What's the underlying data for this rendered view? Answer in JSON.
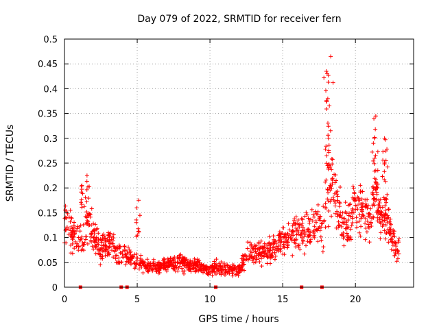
{
  "chart_data": {
    "type": "scatter",
    "title": "Day 079 of 2022, SRMTID for receiver fern",
    "xlabel": "GPS time / hours",
    "ylabel": "SRMTID / TECUs",
    "xlim": [
      0,
      24
    ],
    "ylim": [
      0,
      0.5
    ],
    "grid": true,
    "marker": "plus",
    "marker_color": "#ff0000",
    "xticks": [
      {
        "value": 0,
        "label": "0"
      },
      {
        "value": 5,
        "label": "5"
      },
      {
        "value": 10,
        "label": "10"
      },
      {
        "value": 15,
        "label": "15"
      },
      {
        "value": 20,
        "label": "20"
      }
    ],
    "yticks": [
      {
        "value": 0,
        "label": "0"
      },
      {
        "value": 0.05,
        "label": "0.05"
      },
      {
        "value": 0.1,
        "label": "0.1"
      },
      {
        "value": 0.15,
        "label": "0.15"
      },
      {
        "value": 0.2,
        "label": "0.2"
      },
      {
        "value": 0.25,
        "label": "0.25"
      },
      {
        "value": 0.3,
        "label": "0.3"
      },
      {
        "value": 0.35,
        "label": "0.35"
      },
      {
        "value": 0.4,
        "label": "0.4"
      },
      {
        "value": 0.45,
        "label": "0.45"
      },
      {
        "value": 0.5,
        "label": "0.5"
      }
    ],
    "trend": [
      [
        0.0,
        0.13
      ],
      [
        0.3,
        0.12
      ],
      [
        0.6,
        0.1
      ],
      [
        1.0,
        0.1
      ],
      [
        1.3,
        0.08
      ],
      [
        1.6,
        0.14
      ],
      [
        2.0,
        0.1
      ],
      [
        2.5,
        0.08
      ],
      [
        3.0,
        0.09
      ],
      [
        3.5,
        0.08
      ],
      [
        4.0,
        0.06
      ],
      [
        4.5,
        0.06
      ],
      [
        5.0,
        0.05
      ],
      [
        5.5,
        0.045
      ],
      [
        6.0,
        0.04
      ],
      [
        7.0,
        0.045
      ],
      [
        8.0,
        0.05
      ],
      [
        9.0,
        0.045
      ],
      [
        9.5,
        0.04
      ],
      [
        10.0,
        0.035
      ],
      [
        10.5,
        0.04
      ],
      [
        11.0,
        0.035
      ],
      [
        12.0,
        0.035
      ],
      [
        12.5,
        0.06
      ],
      [
        13.0,
        0.07
      ],
      [
        14.0,
        0.075
      ],
      [
        15.0,
        0.09
      ],
      [
        16.0,
        0.11
      ],
      [
        17.0,
        0.12
      ],
      [
        17.8,
        0.13
      ],
      [
        18.2,
        0.22
      ],
      [
        18.6,
        0.17
      ],
      [
        19.0,
        0.14
      ],
      [
        19.5,
        0.13
      ],
      [
        20.0,
        0.16
      ],
      [
        20.5,
        0.16
      ],
      [
        21.0,
        0.14
      ],
      [
        21.4,
        0.18
      ],
      [
        21.8,
        0.14
      ],
      [
        22.3,
        0.12
      ],
      [
        22.8,
        0.08
      ]
    ],
    "peaks": [
      {
        "x": 1.2,
        "y": 0.205
      },
      {
        "x": 1.55,
        "y": 0.225
      },
      {
        "x": 5.1,
        "y": 0.175
      },
      {
        "x": 18.0,
        "y": 0.435
      },
      {
        "x": 18.3,
        "y": 0.465
      },
      {
        "x": 18.1,
        "y": 0.38
      },
      {
        "x": 21.4,
        "y": 0.345
      },
      {
        "x": 21.3,
        "y": 0.3
      },
      {
        "x": 22.0,
        "y": 0.3
      },
      {
        "x": 22.1,
        "y": 0.255
      }
    ],
    "zero_points": [
      1.1,
      3.9,
      4.3,
      10.4,
      16.3,
      17.7
    ],
    "x_range": [
      0,
      23.0
    ],
    "point_count": 1400
  }
}
